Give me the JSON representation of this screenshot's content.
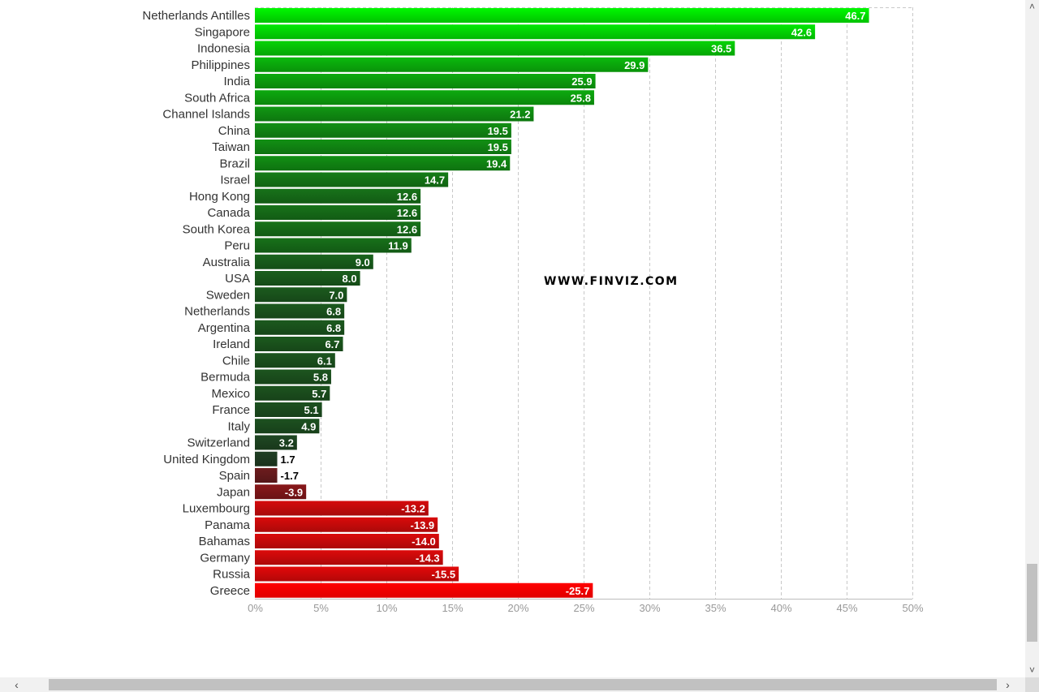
{
  "chart_data": {
    "type": "bar",
    "orientation": "horizontal",
    "categories": [
      "Netherlands Antilles",
      "Singapore",
      "Indonesia",
      "Philippines",
      "India",
      "South Africa",
      "Channel Islands",
      "China",
      "Taiwan",
      "Brazil",
      "Israel",
      "Hong Kong",
      "Canada",
      "South Korea",
      "Peru",
      "Australia",
      "USA",
      "Sweden",
      "Netherlands",
      "Argentina",
      "Ireland",
      "Chile",
      "Bermuda",
      "Mexico",
      "France",
      "Italy",
      "Switzerland",
      "United Kingdom",
      "Spain",
      "Japan",
      "Luxembourg",
      "Panama",
      "Bahamas",
      "Germany",
      "Russia",
      "Greece"
    ],
    "values": [
      46.7,
      42.6,
      36.5,
      29.9,
      25.9,
      25.8,
      21.2,
      19.5,
      19.5,
      19.4,
      14.7,
      12.6,
      12.6,
      12.6,
      11.9,
      9.0,
      8.0,
      7.0,
      6.8,
      6.8,
      6.7,
      6.1,
      5.8,
      5.7,
      5.1,
      4.9,
      3.2,
      1.7,
      -1.7,
      -3.9,
      -13.2,
      -13.9,
      -14.0,
      -14.3,
      -15.5,
      -25.7
    ],
    "value_labels": [
      "46.7",
      "42.6",
      "36.5",
      "29.9",
      "25.9",
      "25.8",
      "21.2",
      "19.5",
      "19.5",
      "19.4",
      "14.7",
      "12.6",
      "12.6",
      "12.6",
      "11.9",
      "9.0",
      "8.0",
      "7.0",
      "6.8",
      "6.8",
      "6.7",
      "6.1",
      "5.8",
      "5.7",
      "5.1",
      "4.9",
      "3.2",
      "1.7",
      "-1.7",
      "-3.9",
      "-13.2",
      "-13.9",
      "-14.0",
      "-14.3",
      "-15.5",
      "-25.7"
    ],
    "bar_length": "absolute value",
    "xlim": [
      0,
      50
    ],
    "xticks": [
      "0%",
      "5%",
      "10%",
      "15%",
      "20%",
      "25%",
      "30%",
      "35%",
      "40%",
      "45%",
      "50%"
    ],
    "grid": true,
    "positive_color_high": "#00dd00",
    "positive_color_low": "#1f2e22",
    "negative_color_low": "#3a1f22",
    "negative_color_high": "#ff0000"
  },
  "watermark": "WWW.FINVIZ.COM",
  "scrollbars": {
    "up_icon": "chevron-up-icon",
    "down_icon": "chevron-down-icon",
    "left_icon": "chevron-left-icon",
    "right_icon": "chevron-right-icon"
  }
}
